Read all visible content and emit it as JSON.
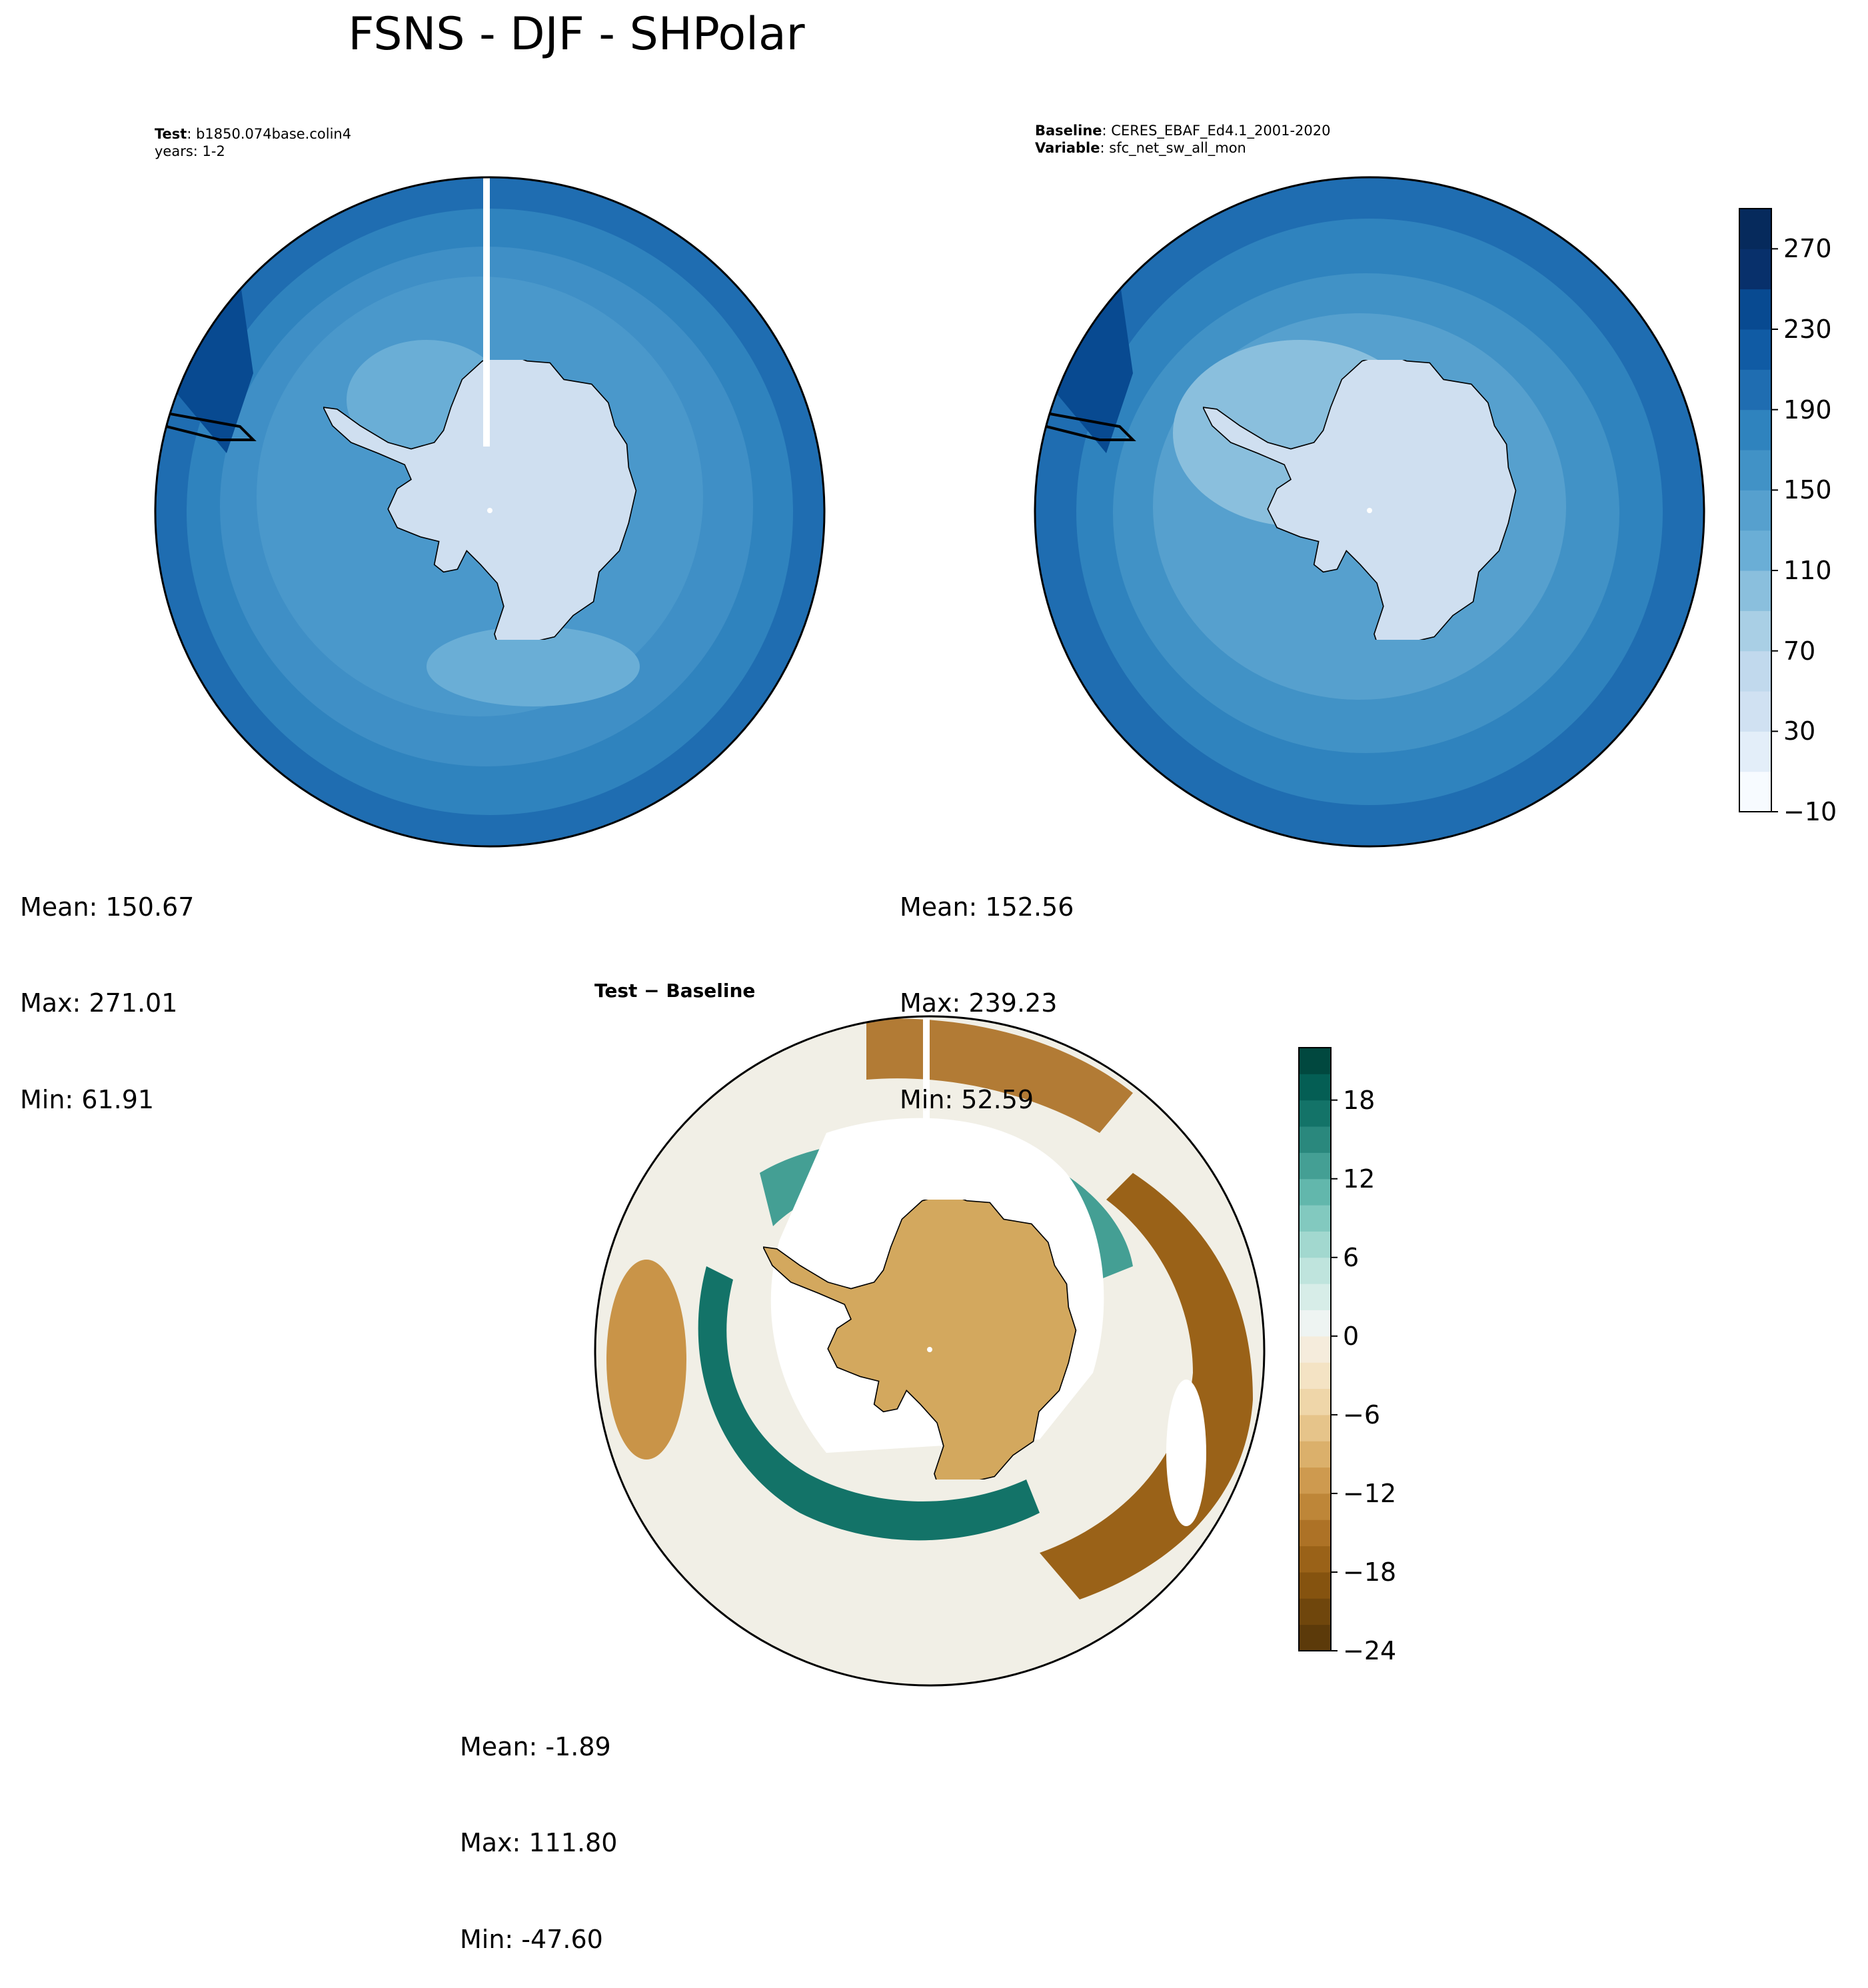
{
  "figure": {
    "title": "FSNS - DJF - SHPolar"
  },
  "panels": {
    "test": {
      "label": "Test",
      "name": "b1850.074base.colin4",
      "years": "years: 1-2",
      "stats": {
        "mean": "Mean: 150.67",
        "max": "Max: 271.01",
        "min": "Min: 61.91"
      }
    },
    "baseline": {
      "label": "Baseline",
      "name": "CERES_EBAF_Ed4.1_2001-2020",
      "variable_label": "Variable",
      "variable": "sfc_net_sw_all_mon",
      "stats": {
        "mean": "Mean: 152.56",
        "max": "Max: 239.23",
        "min": "Min: 52.59"
      }
    },
    "diff": {
      "title": "Test − Baseline",
      "stats": {
        "mean": "Mean: -1.89",
        "max": "Max: 111.80",
        "min": "Min: -47.60"
      }
    }
  },
  "chart_data": [
    {
      "type": "heatmap",
      "projection": "south-polar-stereographic",
      "title": "Test: b1850.074base.colin4",
      "subtitle": "years: 1-2",
      "variable": "FSNS",
      "season": "DJF",
      "region": "SHPolar",
      "colormap": "Blues",
      "levels": [
        -10,
        10,
        30,
        50,
        70,
        90,
        110,
        130,
        150,
        170,
        190,
        210,
        230,
        250,
        270,
        290
      ],
      "stats": {
        "mean": 150.67,
        "max": 271.01,
        "min": 61.91
      }
    },
    {
      "type": "heatmap",
      "projection": "south-polar-stereographic",
      "title": "Baseline: CERES_EBAF_Ed4.1_2001-2020",
      "subtitle": "Variable: sfc_net_sw_all_mon",
      "colormap": "Blues",
      "levels": [
        -10,
        10,
        30,
        50,
        70,
        90,
        110,
        130,
        150,
        170,
        190,
        210,
        230,
        250,
        270,
        290
      ],
      "stats": {
        "mean": 152.56,
        "max": 239.23,
        "min": 52.59
      }
    },
    {
      "type": "heatmap",
      "projection": "south-polar-stereographic",
      "title": "Test − Baseline",
      "colormap": "BrBG",
      "levels": [
        -24,
        -22,
        -20,
        -18,
        -16,
        -14,
        -12,
        -10,
        -8,
        -6,
        -4,
        -2,
        0,
        2,
        4,
        6,
        8,
        10,
        12,
        14,
        16,
        18,
        20,
        22
      ],
      "stats": {
        "mean": -1.89,
        "max": 111.8,
        "min": -47.6
      }
    }
  ],
  "colorbars": {
    "main": {
      "min": -10,
      "max": 290,
      "ticks": [
        270,
        230,
        190,
        150,
        110,
        70,
        30,
        -10
      ],
      "tick_labels": [
        "270",
        "230",
        "190",
        "150",
        "110",
        "70",
        "30",
        "−10"
      ],
      "colors": [
        "#f7fbff",
        "#e3eef9",
        "#d0e1f2",
        "#c1d9ed",
        "#a9cfe5",
        "#8abfdd",
        "#6aaed6",
        "#56a0ce",
        "#4192c6",
        "#2f83be",
        "#1f6db1",
        "#105ba4",
        "#084a91",
        "#08306b",
        "#062a5c"
      ]
    },
    "diff": {
      "min": -24,
      "max": 22,
      "ticks": [
        18,
        12,
        6,
        0,
        -6,
        -12,
        -18,
        -24
      ],
      "tick_labels": [
        "18",
        "12",
        "6",
        "0",
        "−6",
        "−12",
        "−18",
        "−24"
      ],
      "colors": [
        "#5c3a0a",
        "#6f460c",
        "#85530f",
        "#9a6218",
        "#ad7226",
        "#be8638",
        "#ce9a4f",
        "#dbb06b",
        "#e6c48a",
        "#efd6a9",
        "#f4e3c4",
        "#f5ecdc",
        "#eef4f2",
        "#d7ede8",
        "#bfe4dd",
        "#a2d8cf",
        "#82c9bf",
        "#62b7ac",
        "#449f94",
        "#2a887d",
        "#137368",
        "#045e54",
        "#01483f"
      ]
    }
  },
  "colors": {
    "land": "#cfdff0",
    "ocean_low": "#6aaed6",
    "ocean_mid": "#3f8fc6",
    "ocean_high": "#1f6db1",
    "ocean_max": "#084a91",
    "coast": "#000000"
  }
}
